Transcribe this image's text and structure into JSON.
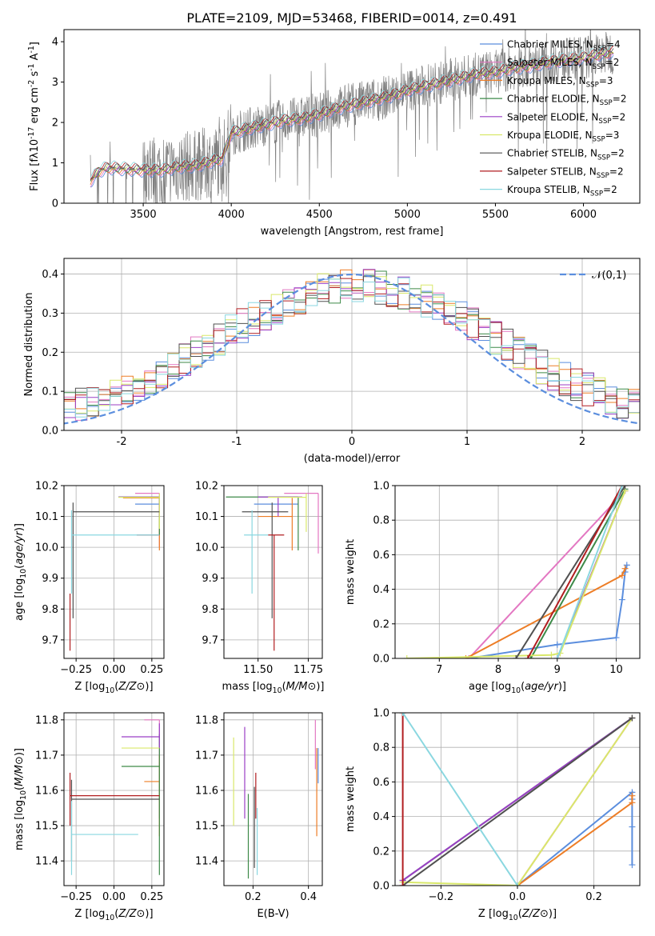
{
  "figure": {
    "title": "PLATE=2109, MJD=53468, FIBERID=0014, z=0.491"
  },
  "colors": {
    "chabrier_miles": "#5b8ede",
    "salpeter_miles": "#e377c2",
    "kroupa_miles": "#ed7d26",
    "chabrier_elodie": "#3d8a48",
    "salpeter_elodie": "#9b3fc6",
    "kroupa_elodie": "#d9e86a",
    "chabrier_stelib": "#505050",
    "salpeter_stelib": "#b11d20",
    "kroupa_stelib": "#8ad7e0",
    "data": "#808080",
    "normal": "#5b8ede",
    "grid": "#b0b0b0"
  },
  "chart_data": [
    {
      "id": "spectrum",
      "type": "line",
      "xlabel": "wavelength [Angstrom, rest frame]",
      "ylabel": "Flux [f$_\\lambda$10$^{-17}$ erg cm$^{-2}$ s$^{-1}$ A$^{-1}$]",
      "xlim": [
        3050,
        6320
      ],
      "ylim": [
        0,
        4.3
      ],
      "xticks": [
        3500,
        4000,
        4500,
        5000,
        5500,
        6000
      ],
      "yticks": [
        0,
        1,
        2,
        3,
        4
      ],
      "grid": false,
      "legend_position": "top-right",
      "legend": [
        {
          "label": "Chabrier MILES, N$_{SSP}$=4",
          "color_key": "chabrier_miles"
        },
        {
          "label": "Salpeter MILES, N$_{SSP}$=2",
          "color_key": "salpeter_miles"
        },
        {
          "label": "Kroupa MILES, N$_{SSP}$=3",
          "color_key": "kroupa_miles"
        },
        {
          "label": "Chabrier ELODIE, N$_{SSP}$=2",
          "color_key": "chabrier_elodie"
        },
        {
          "label": "Salpeter ELODIE, N$_{SSP}$=2",
          "color_key": "salpeter_elodie"
        },
        {
          "label": "Kroupa ELODIE, N$_{SSP}$=3",
          "color_key": "kroupa_elodie"
        },
        {
          "label": "Chabrier STELIB, N$_{SSP}$=2",
          "color_key": "chabrier_stelib"
        },
        {
          "label": "Salpeter STELIB, N$_{SSP}$=2",
          "color_key": "salpeter_stelib"
        },
        {
          "label": "Kroupa STELIB, N$_{SSP}$=2",
          "color_key": "kroupa_stelib"
        }
      ],
      "model_continuum": {
        "x": [
          3200,
          3250,
          3300,
          3400,
          3500,
          3600,
          3700,
          3800,
          3900,
          3950,
          4000,
          4100,
          4200,
          4300,
          4400,
          4500,
          4600,
          4700,
          4800,
          4900,
          5000,
          5100,
          5200,
          5300,
          5400,
          5500,
          5600,
          5700,
          5800,
          5900,
          6000,
          6100,
          6170
        ],
        "y": [
          0.55,
          0.8,
          0.88,
          0.85,
          0.82,
          0.82,
          0.9,
          0.93,
          1.05,
          1.1,
          1.75,
          1.85,
          1.95,
          2.05,
          2.1,
          2.2,
          2.35,
          2.45,
          2.55,
          2.65,
          2.8,
          2.9,
          3.0,
          3.1,
          3.2,
          3.25,
          3.35,
          3.4,
          3.5,
          3.55,
          3.6,
          3.7,
          3.75
        ]
      },
      "data_noise_start": 3500
    },
    {
      "id": "residuals",
      "type": "line",
      "xlabel": "(data-model)/error",
      "ylabel": "Normed distribution",
      "xlim": [
        -2.5,
        2.5
      ],
      "ylim": [
        0,
        0.44
      ],
      "xticks": [
        -2,
        -1,
        0,
        1,
        2
      ],
      "yticks": [
        0.0,
        0.1,
        0.2,
        0.3,
        0.4
      ],
      "grid": true,
      "legend_position": "top-right",
      "legend": [
        {
          "label": "$\\mathcal{N}(0,1)$",
          "color_key": "normal",
          "dashed": true
        }
      ],
      "bin_width": 0.1
    },
    {
      "id": "age_vs_z",
      "type": "scatter",
      "xlabel": "Z [log$_{10}$($Z/Z_\\odot$)]",
      "ylabel": "age  [log$_{10}$($age/yr$)]",
      "xlim": [
        -0.33,
        0.33
      ],
      "ylim": [
        9.64,
        10.2
      ],
      "xticks": [
        -0.25,
        0.0,
        0.25
      ],
      "xtick_labels": [
        "−0.25",
        "0.00",
        "0.25"
      ],
      "yticks": [
        9.7,
        9.8,
        9.9,
        10.0,
        10.1,
        10.2
      ],
      "ytick_labels": [
        "9.7",
        "9.8",
        "9.9",
        "10.0",
        "10.1",
        "10.2"
      ],
      "grid": true,
      "points": [
        {
          "color_key": "chabrier_miles",
          "x": 0.3,
          "xlo": 0.14,
          "xhi": 0.3,
          "y": 10.14,
          "ylo": 10.14,
          "yhi": 10.16
        },
        {
          "color_key": "salpeter_miles",
          "x": 0.3,
          "xlo": 0.14,
          "xhi": 0.3,
          "y": 10.175,
          "ylo": 10.0,
          "yhi": 10.175
        },
        {
          "color_key": "kroupa_miles",
          "x": 0.3,
          "xlo": 0.06,
          "xhi": 0.3,
          "y": 10.16,
          "ylo": 9.99,
          "yhi": 10.16
        },
        {
          "color_key": "chabrier_elodie",
          "x": 0.3,
          "xlo": 0.03,
          "xhi": 0.3,
          "y": 10.163,
          "ylo": 10.04,
          "yhi": 10.163
        },
        {
          "color_key": "salpeter_elodie",
          "x": 0.3,
          "xlo": 0.03,
          "xhi": 0.3,
          "y": 10.163,
          "ylo": 10.1,
          "yhi": 10.163
        },
        {
          "color_key": "kroupa_elodie",
          "x": 0.3,
          "xlo": 0.03,
          "xhi": 0.3,
          "y": 10.162,
          "ylo": 10.06,
          "yhi": 10.175
        },
        {
          "color_key": "chabrier_stelib",
          "x": -0.27,
          "xlo": -0.27,
          "xhi": 0.3,
          "y": 10.115,
          "ylo": 9.77,
          "yhi": 10.145
        },
        {
          "color_key": "salpeter_stelib",
          "x": -0.29,
          "xlo": -0.29,
          "xhi": -0.29,
          "y": 9.77,
          "ylo": 9.665,
          "yhi": 9.85
        },
        {
          "color_key": "salpeter_stelib",
          "x": 0.3,
          "xlo": 0.15,
          "xhi": 0.3,
          "y": 10.04,
          "ylo": 10.04,
          "yhi": 10.04
        },
        {
          "color_key": "kroupa_stelib",
          "x": -0.28,
          "xlo": -0.28,
          "xhi": 0.3,
          "y": 10.04,
          "ylo": 9.85,
          "yhi": 10.12
        }
      ]
    },
    {
      "id": "age_vs_mass",
      "type": "scatter",
      "xlabel": "mass [log$_{10}$($M/M_\\odot$)]",
      "ylabel": "",
      "xlim": [
        11.33,
        11.82
      ],
      "ylim": [
        9.64,
        10.2
      ],
      "xticks": [
        11.5,
        11.75
      ],
      "xtick_labels": [
        "11.50",
        "11.75"
      ],
      "yticks": [
        9.7,
        9.8,
        9.9,
        10.0,
        10.1,
        10.2
      ],
      "ytick_labels": [
        "9.7",
        "9.8",
        "9.9",
        "10.0",
        "10.1",
        "10.2"
      ],
      "grid": true,
      "points": [
        {
          "color_key": "chabrier_miles",
          "x": 11.55,
          "xlo": 11.48,
          "xhi": 11.7,
          "y": 10.14,
          "ylo": 10.14,
          "yhi": 10.14
        },
        {
          "color_key": "salpeter_miles",
          "x": 11.8,
          "xlo": 11.63,
          "xhi": 11.8,
          "y": 10.175,
          "ylo": 9.98,
          "yhi": 10.175
        },
        {
          "color_key": "kroupa_miles",
          "x": 11.67,
          "xlo": 11.5,
          "xhi": 11.67,
          "y": 10.1,
          "ylo": 9.99,
          "yhi": 10.16
        },
        {
          "color_key": "chabrier_elodie",
          "x": 11.7,
          "xlo": 11.34,
          "xhi": 11.7,
          "y": 10.163,
          "ylo": 9.99,
          "yhi": 10.163
        },
        {
          "color_key": "salpeter_elodie",
          "x": 11.6,
          "xlo": 11.5,
          "xhi": 11.72,
          "y": 10.163,
          "ylo": 10.1,
          "yhi": 10.163
        },
        {
          "color_key": "kroupa_elodie",
          "x": 11.74,
          "xlo": 11.55,
          "xhi": 11.74,
          "y": 10.162,
          "ylo": 10.05,
          "yhi": 10.175
        },
        {
          "color_key": "chabrier_stelib",
          "x": 11.57,
          "xlo": 11.42,
          "xhi": 11.65,
          "y": 10.115,
          "ylo": 9.77,
          "yhi": 10.145
        },
        {
          "color_key": "salpeter_stelib",
          "x": 11.58,
          "xlo": 11.55,
          "xhi": 11.63,
          "y": 10.04,
          "ylo": 9.665,
          "yhi": 10.04
        },
        {
          "color_key": "kroupa_stelib",
          "x": 11.47,
          "xlo": 11.43,
          "xhi": 11.55,
          "y": 10.04,
          "ylo": 9.85,
          "yhi": 10.12
        }
      ]
    },
    {
      "id": "mass_weight_vs_age",
      "type": "line",
      "xlabel": "age  [log$_{10}$($age/yr$)]",
      "ylabel": "mass weight",
      "xlim": [
        6.25,
        10.4
      ],
      "ylim": [
        0,
        1.0
      ],
      "xticks": [
        7,
        8,
        9,
        10
      ],
      "xtick_labels": [
        "7",
        "8",
        "9",
        "10"
      ],
      "yticks": [
        0.0,
        0.2,
        0.4,
        0.6,
        0.8,
        1.0
      ],
      "ytick_labels": [
        "0.0",
        "0.2",
        "0.4",
        "0.6",
        "0.8",
        "1.0"
      ],
      "grid": true,
      "series": [
        {
          "color_key": "chabrier_miles",
          "x": [
            7.5,
            9.0,
            10.0,
            10.1,
            10.15,
            10.18
          ],
          "y": [
            0.0,
            0.08,
            0.12,
            0.34,
            0.5,
            0.54
          ]
        },
        {
          "color_key": "salpeter_miles",
          "x": [
            7.5,
            10.15
          ],
          "y": [
            0.0,
            0.97
          ]
        },
        {
          "color_key": "kroupa_miles",
          "x": [
            7.45,
            10.1,
            10.15
          ],
          "y": [
            0.0,
            0.48,
            0.52
          ]
        },
        {
          "color_key": "chabrier_elodie",
          "x": [
            8.55,
            10.15
          ],
          "y": [
            0.0,
            0.98
          ]
        },
        {
          "color_key": "salpeter_elodie",
          "x": [
            9.0,
            10.15
          ],
          "y": [
            0.0,
            0.97
          ]
        },
        {
          "color_key": "kroupa_elodie",
          "x": [
            6.45,
            8.9,
            9.05,
            10.15
          ],
          "y": [
            0.0,
            0.02,
            0.03,
            0.97
          ]
        },
        {
          "color_key": "chabrier_stelib",
          "x": [
            8.3,
            10.15
          ],
          "y": [
            0.0,
            1.0
          ]
        },
        {
          "color_key": "salpeter_stelib",
          "x": [
            8.5,
            10.1
          ],
          "y": [
            0.0,
            1.0
          ]
        },
        {
          "color_key": "kroupa_stelib",
          "x": [
            9.0,
            10.1
          ],
          "y": [
            0.0,
            1.0
          ]
        }
      ]
    },
    {
      "id": "mass_vs_z",
      "type": "scatter",
      "xlabel": "Z [log$_{10}$($Z/Z_\\odot$)]",
      "ylabel": "mass [log$_{10}$($M/M_\\odot$)]",
      "xlim": [
        -0.33,
        0.33
      ],
      "ylim": [
        11.33,
        11.82
      ],
      "xticks": [
        -0.25,
        0.0,
        0.25
      ],
      "xtick_labels": [
        "−0.25",
        "0.00",
        "0.25"
      ],
      "yticks": [
        11.4,
        11.5,
        11.6,
        11.7,
        11.8
      ],
      "ytick_labels": [
        "11.4",
        "11.5",
        "11.6",
        "11.7",
        "11.8"
      ],
      "grid": true,
      "points": [
        {
          "color_key": "chabrier_miles",
          "x": 0.3,
          "xlo": 0.3,
          "xhi": 0.3,
          "y": 11.62,
          "ylo": 11.52,
          "yhi": 11.68
        },
        {
          "color_key": "salpeter_miles",
          "x": 0.3,
          "xlo": 0.2,
          "xhi": 0.3,
          "y": 11.8,
          "ylo": 11.66,
          "yhi": 11.8
        },
        {
          "color_key": "kroupa_miles",
          "x": 0.3,
          "xlo": 0.2,
          "xhi": 0.3,
          "y": 11.625,
          "ylo": 11.47,
          "yhi": 11.7
        },
        {
          "color_key": "chabrier_elodie",
          "x": 0.3,
          "xlo": 0.05,
          "xhi": 0.3,
          "y": 11.668,
          "ylo": 11.36,
          "yhi": 11.76
        },
        {
          "color_key": "salpeter_elodie",
          "x": 0.3,
          "xlo": 0.05,
          "xhi": 0.3,
          "y": 11.752,
          "ylo": 11.72,
          "yhi": 11.79
        },
        {
          "color_key": "kroupa_elodie",
          "x": 0.3,
          "xlo": 0.05,
          "xhi": 0.3,
          "y": 11.72,
          "ylo": 11.72,
          "yhi": 11.72
        },
        {
          "color_key": "chabrier_stelib",
          "x": -0.28,
          "xlo": -0.28,
          "xhi": 0.3,
          "y": 11.575,
          "ylo": 11.4,
          "yhi": 11.63
        },
        {
          "color_key": "salpeter_stelib",
          "x": -0.29,
          "xlo": -0.29,
          "xhi": 0.3,
          "y": 11.585,
          "ylo": 11.5,
          "yhi": 11.65
        },
        {
          "color_key": "kroupa_stelib",
          "x": -0.28,
          "xlo": -0.28,
          "xhi": 0.16,
          "y": 11.475,
          "ylo": 11.36,
          "yhi": 11.57
        }
      ]
    },
    {
      "id": "mass_vs_ebv",
      "type": "scatter",
      "xlabel": "E(B-V)",
      "ylabel": "",
      "xlim": [
        0.095,
        0.45
      ],
      "ylim": [
        11.33,
        11.82
      ],
      "xticks": [
        0.2,
        0.4
      ],
      "xtick_labels": [
        "0.2",
        "0.4"
      ],
      "yticks": [
        11.4,
        11.5,
        11.6,
        11.7,
        11.8
      ],
      "ytick_labels": [
        "11.4",
        "11.5",
        "11.6",
        "11.7",
        "11.8"
      ],
      "grid": true,
      "points": [
        {
          "color_key": "kroupa_elodie",
          "x": 0.13,
          "ylo": 11.5,
          "yhi": 11.75
        },
        {
          "color_key": "salpeter_elodie",
          "x": 0.17,
          "ylo": 11.52,
          "yhi": 11.78
        },
        {
          "color_key": "chabrier_elodie",
          "x": 0.183,
          "ylo": 11.35,
          "yhi": 11.59
        },
        {
          "color_key": "chabrier_stelib",
          "x": 0.205,
          "ylo": 11.38,
          "yhi": 11.61
        },
        {
          "color_key": "salpeter_stelib",
          "x": 0.21,
          "ylo": 11.52,
          "yhi": 11.65
        },
        {
          "color_key": "kroupa_stelib",
          "x": 0.215,
          "ylo": 11.36,
          "yhi": 11.55
        },
        {
          "color_key": "salpeter_miles",
          "x": 0.425,
          "ylo": 11.66,
          "yhi": 11.8
        },
        {
          "color_key": "kroupa_miles",
          "x": 0.43,
          "ylo": 11.47,
          "yhi": 11.72
        },
        {
          "color_key": "chabrier_miles",
          "x": 0.435,
          "ylo": 11.62,
          "yhi": 11.72
        }
      ]
    },
    {
      "id": "mass_weight_vs_z",
      "type": "line",
      "xlabel": "Z [log$_{10}$($Z/Z_\\odot$)]",
      "ylabel": "mass weight",
      "xlim": [
        -0.32,
        0.32
      ],
      "ylim": [
        0,
        1.0
      ],
      "xticks": [
        -0.2,
        0.0,
        0.2
      ],
      "xtick_labels": [
        "−0.2",
        "0.0",
        "0.2"
      ],
      "yticks": [
        0.0,
        0.2,
        0.4,
        0.6,
        0.8,
        1.0
      ],
      "ytick_labels": [
        "0.0",
        "0.2",
        "0.4",
        "0.6",
        "0.8",
        "1.0"
      ],
      "grid": true,
      "series": [
        {
          "color_key": "chabrier_miles",
          "x": [
            0.0,
            0.3,
            0.3,
            0.3,
            0.3
          ],
          "y": [
            0.0,
            0.54,
            0.5,
            0.34,
            0.12
          ]
        },
        {
          "color_key": "salpeter_miles",
          "x": [
            0.0,
            0.3
          ],
          "y": [
            0.0,
            0.97
          ]
        },
        {
          "color_key": "kroupa_miles",
          "x": [
            0.0,
            0.3,
            0.3
          ],
          "y": [
            0.0,
            0.48,
            0.52
          ]
        },
        {
          "color_key": "chabrier_elodie",
          "x": [
            -0.3,
            0.3
          ],
          "y": [
            0.03,
            0.97
          ]
        },
        {
          "color_key": "salpeter_elodie",
          "x": [
            -0.3,
            0.3
          ],
          "y": [
            0.03,
            0.97
          ]
        },
        {
          "color_key": "kroupa_elodie",
          "x": [
            -0.3,
            0.0,
            0.3
          ],
          "y": [
            0.02,
            0.0,
            0.97
          ]
        },
        {
          "color_key": "chabrier_stelib",
          "x": [
            -0.3,
            0.3
          ],
          "y": [
            0.0,
            0.97
          ]
        },
        {
          "color_key": "salpeter_stelib",
          "x": [
            -0.3,
            -0.3
          ],
          "y": [
            0.0,
            1.0
          ]
        },
        {
          "color_key": "kroupa_stelib",
          "x": [
            -0.3,
            0.0
          ],
          "y": [
            1.0,
            0.0
          ]
        }
      ]
    }
  ]
}
